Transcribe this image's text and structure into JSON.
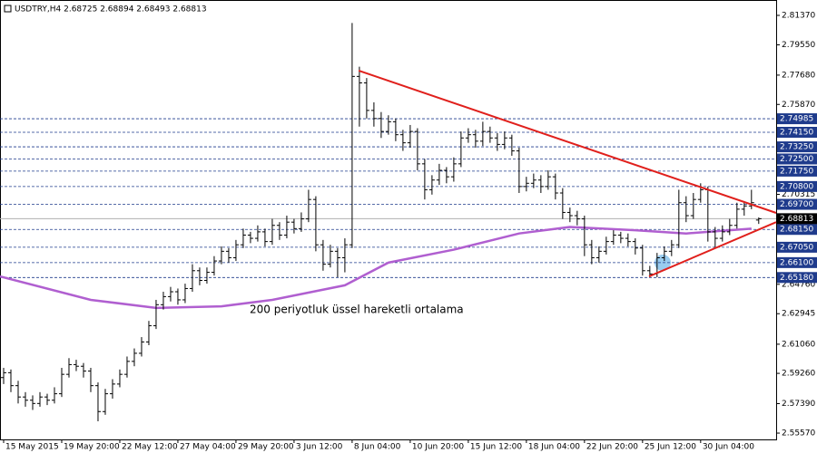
{
  "chart_data": {
    "type": "ohlc",
    "title": "USDTRY,H4  2.68725 2.68894 2.68493 2.68813",
    "annotation": "200 periyotluk üssel hareketli ortalama",
    "color": "#000000",
    "ylim": [
      2.5518,
      2.8232
    ],
    "xlim": [
      -0.5,
      106.4
    ],
    "yticks": [
      {
        "value": 2.8137,
        "label": "2.81370"
      },
      {
        "value": 2.7955,
        "label": "2.79550"
      },
      {
        "value": 2.7768,
        "label": "2.77680"
      },
      {
        "value": 2.7587,
        "label": "2.75870"
      },
      2.70315,
      {
        "value": 2.6476,
        "label": "2.64760"
      },
      2.62945,
      {
        "value": 2.6106,
        "label": "2.61060"
      },
      {
        "value": 2.5926,
        "label": "2.59260"
      },
      {
        "value": 2.5739,
        "label": "2.57390"
      },
      {
        "value": 2.5557,
        "label": "2.55570"
      }
    ],
    "xticks": [
      {
        "value": 0,
        "label": "15 May 2015"
      },
      {
        "value": 8,
        "label": "19 May 20:00"
      },
      {
        "value": 16,
        "label": "22 May 12:00"
      },
      {
        "value": 24,
        "label": "27 May 04:00"
      },
      {
        "value": 32,
        "label": "29 May 20:00"
      },
      {
        "value": 40,
        "label": "3 Jun 12:00"
      },
      {
        "value": 48,
        "label": "8 Jun 04:00"
      },
      {
        "value": 56,
        "label": "10 Jun 20:00"
      },
      {
        "value": 64,
        "label": "15 Jun 12:00"
      },
      {
        "value": 72,
        "label": "18 Jun 04:00"
      },
      {
        "value": 80,
        "label": "22 Jun 20:00"
      },
      {
        "value": 88,
        "label": "25 Jun 12:00"
      },
      {
        "value": 96,
        "label": "30 Jun 04:00"
      }
    ],
    "levels": {
      "color": "#1f3b8c",
      "values": [
        2.74985,
        {
          "value": 2.7415,
          "label": "2.74150"
        },
        {
          "value": 2.7325,
          "label": "2.73250"
        },
        {
          "value": 2.725,
          "label": "2.72500"
        },
        {
          "value": 2.7175,
          "label": "2.71750"
        },
        {
          "value": 2.708,
          "label": "2.70800"
        },
        {
          "value": 2.697,
          "label": "2.69700"
        },
        {
          "value": 2.6815,
          "label": "2.68150"
        },
        {
          "value": 2.6705,
          "label": "2.67050"
        },
        {
          "value": 2.661,
          "label": "2.66100"
        },
        {
          "value": 2.6518,
          "label": "2.65180"
        }
      ]
    },
    "current": 2.68813,
    "ema": {
      "color": "#b05fd0",
      "x": [
        -0.5,
        12,
        21,
        30,
        37,
        47,
        53,
        62,
        71,
        78,
        87,
        94,
        103
      ],
      "values": [
        2.6525,
        2.638,
        2.633,
        2.634,
        2.638,
        2.647,
        2.661,
        2.669,
        2.679,
        2.683,
        2.681,
        2.679,
        2.682
      ]
    },
    "trendlines": {
      "color": "#e0201c",
      "lines": [
        {
          "x": [
            48.9,
            106.4
          ],
          "values": [
            2.7796,
            2.6917
          ]
        },
        {
          "x": [
            88.9,
            106.4
          ],
          "values": [
            2.6525,
            2.686
          ]
        }
      ]
    },
    "ohlc": [
      [
        2.59,
        2.596,
        2.586,
        2.593
      ],
      [
        2.593,
        2.595,
        2.581,
        2.585
      ],
      [
        2.585,
        2.588,
        2.574,
        2.578
      ],
      [
        2.578,
        2.581,
        2.572,
        2.576
      ],
      [
        2.576,
        2.579,
        2.57,
        2.574
      ],
      [
        2.574,
        2.581,
        2.572,
        2.578
      ],
      [
        2.578,
        2.58,
        2.573,
        2.576
      ],
      [
        2.576,
        2.584,
        2.574,
        2.58
      ],
      [
        2.58,
        2.596,
        2.578,
        2.592
      ],
      [
        2.592,
        2.602,
        2.59,
        2.598
      ],
      [
        2.598,
        2.601,
        2.594,
        2.597
      ],
      [
        2.597,
        2.599,
        2.59,
        2.594
      ],
      [
        2.594,
        2.596,
        2.581,
        2.585
      ],
      [
        2.585,
        2.587,
        2.563,
        2.569
      ],
      [
        2.569,
        2.583,
        2.567,
        2.58
      ],
      [
        2.58,
        2.589,
        2.577,
        2.586
      ],
      [
        2.586,
        2.595,
        2.584,
        2.592
      ],
      [
        2.592,
        2.603,
        2.59,
        2.6
      ],
      [
        2.6,
        2.608,
        2.597,
        2.605
      ],
      [
        2.605,
        2.615,
        2.603,
        2.612
      ],
      [
        2.612,
        2.625,
        2.61,
        2.622
      ],
      [
        2.622,
        2.638,
        2.62,
        2.635
      ],
      [
        2.635,
        2.643,
        2.632,
        2.64
      ],
      [
        2.64,
        2.646,
        2.637,
        2.643
      ],
      [
        2.643,
        2.645,
        2.635,
        2.638
      ],
      [
        2.638,
        2.648,
        2.636,
        2.645
      ],
      [
        2.645,
        2.66,
        2.643,
        2.656
      ],
      [
        2.656,
        2.658,
        2.647,
        2.65
      ],
      [
        2.65,
        2.658,
        2.648,
        2.655
      ],
      [
        2.655,
        2.665,
        2.653,
        2.662
      ],
      [
        2.662,
        2.671,
        2.66,
        2.668
      ],
      [
        2.668,
        2.67,
        2.661,
        2.664
      ],
      [
        2.664,
        2.675,
        2.662,
        2.672
      ],
      [
        2.672,
        2.682,
        2.67,
        2.678
      ],
      [
        2.678,
        2.68,
        2.673,
        2.676
      ],
      [
        2.676,
        2.684,
        2.674,
        2.68
      ],
      [
        2.68,
        2.682,
        2.671,
        2.674
      ],
      [
        2.674,
        2.688,
        2.672,
        2.684
      ],
      [
        2.684,
        2.686,
        2.675,
        2.678
      ],
      [
        2.678,
        2.69,
        2.676,
        2.686
      ],
      [
        2.686,
        2.688,
        2.679,
        2.682
      ],
      [
        2.682,
        2.692,
        2.68,
        2.688
      ],
      [
        2.688,
        2.706,
        2.686,
        2.7
      ],
      [
        2.7,
        2.702,
        2.668,
        2.672
      ],
      [
        2.672,
        2.675,
        2.656,
        2.66
      ],
      [
        2.66,
        2.672,
        2.658,
        2.668
      ],
      [
        2.668,
        2.67,
        2.652,
        2.664
      ],
      [
        2.664,
        2.676,
        2.655,
        2.672
      ],
      [
        2.672,
        2.809,
        2.67,
        2.776
      ],
      [
        2.776,
        2.782,
        2.745,
        2.772
      ],
      [
        2.772,
        2.775,
        2.75,
        2.755
      ],
      [
        2.755,
        2.76,
        2.745,
        2.75
      ],
      [
        2.75,
        2.754,
        2.738,
        2.742
      ],
      [
        2.742,
        2.752,
        2.74,
        2.748
      ],
      [
        2.748,
        2.75,
        2.736,
        2.74
      ],
      [
        2.74,
        2.743,
        2.73,
        2.735
      ],
      [
        2.735,
        2.746,
        2.732,
        2.742
      ],
      [
        2.742,
        2.744,
        2.718,
        2.722
      ],
      [
        2.722,
        2.725,
        2.7,
        2.706
      ],
      [
        2.706,
        2.715,
        2.703,
        2.712
      ],
      [
        2.712,
        2.722,
        2.709,
        2.718
      ],
      [
        2.718,
        2.72,
        2.71,
        2.714
      ],
      [
        2.714,
        2.726,
        2.711,
        2.722
      ],
      [
        2.722,
        2.742,
        2.72,
        2.738
      ],
      [
        2.738,
        2.744,
        2.735,
        2.74
      ],
      [
        2.74,
        2.743,
        2.732,
        2.736
      ],
      [
        2.736,
        2.748,
        2.733,
        2.742
      ],
      [
        2.742,
        2.745,
        2.735,
        2.738
      ],
      [
        2.738,
        2.741,
        2.73,
        2.734
      ],
      [
        2.734,
        2.742,
        2.731,
        2.738
      ],
      [
        2.738,
        2.74,
        2.727,
        2.73
      ],
      [
        2.73,
        2.732,
        2.704,
        2.708
      ],
      [
        2.708,
        2.714,
        2.705,
        2.71
      ],
      [
        2.71,
        2.716,
        2.707,
        2.712
      ],
      [
        2.712,
        2.715,
        2.704,
        2.708
      ],
      [
        2.708,
        2.718,
        2.706,
        2.714
      ],
      [
        2.714,
        2.716,
        2.7,
        2.704
      ],
      [
        2.704,
        2.707,
        2.688,
        2.692
      ],
      [
        2.692,
        2.695,
        2.686,
        2.69
      ],
      [
        2.69,
        2.693,
        2.684,
        2.688
      ],
      [
        2.688,
        2.69,
        2.665,
        2.672
      ],
      [
        2.672,
        2.675,
        2.66,
        2.664
      ],
      [
        2.664,
        2.671,
        2.661,
        2.668
      ],
      [
        2.668,
        2.677,
        2.666,
        2.674
      ],
      [
        2.674,
        2.681,
        2.672,
        2.678
      ],
      [
        2.678,
        2.68,
        2.673,
        2.676
      ],
      [
        2.676,
        2.679,
        2.671,
        2.674
      ],
      [
        2.674,
        2.676,
        2.666,
        2.67
      ],
      [
        2.67,
        2.672,
        2.653,
        2.656
      ],
      [
        2.656,
        2.659,
        2.652,
        2.654
      ],
      [
        2.654,
        2.667,
        2.652,
        2.664
      ],
      [
        2.664,
        2.671,
        2.662,
        2.668
      ],
      [
        2.668,
        2.675,
        2.665,
        2.672
      ],
      [
        2.672,
        2.706,
        2.67,
        2.698
      ],
      [
        2.698,
        2.702,
        2.686,
        2.69
      ],
      [
        2.69,
        2.704,
        2.688,
        2.7
      ],
      [
        2.7,
        2.71,
        2.698,
        2.706
      ],
      [
        2.706,
        2.708,
        2.674,
        2.68
      ],
      [
        2.68,
        2.683,
        2.67,
        2.676
      ],
      [
        2.676,
        2.684,
        2.674,
        2.68
      ],
      [
        2.68,
        2.688,
        2.678,
        2.684
      ],
      [
        2.684,
        2.698,
        2.682,
        2.694
      ],
      [
        2.694,
        2.699,
        2.69,
        2.696
      ],
      [
        2.696,
        2.706,
        2.694,
        2.698
      ],
      [
        2.6873,
        2.6889,
        2.6849,
        2.6881
      ]
    ]
  }
}
